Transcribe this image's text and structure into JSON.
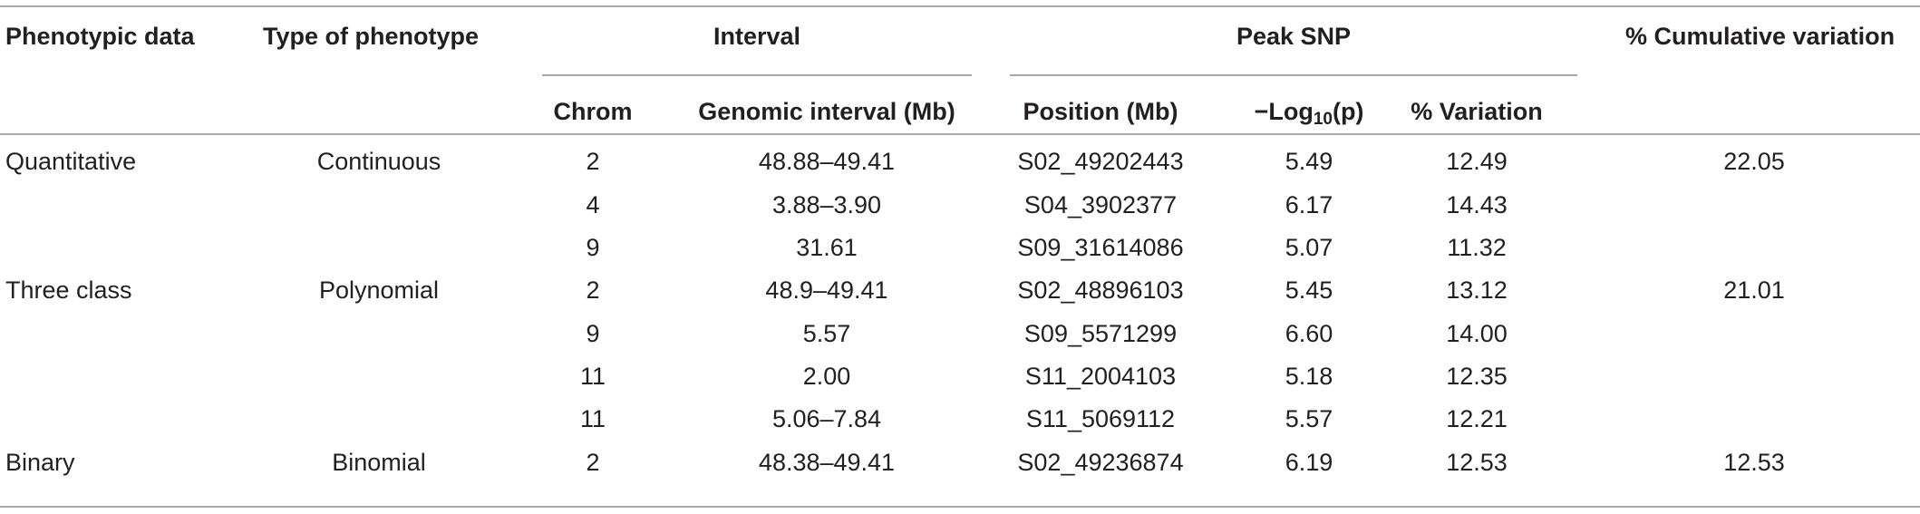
{
  "header": {
    "phenotypic_data": "Phenotypic data",
    "type_of_phenotype": "Type of phenotype",
    "interval": "Interval",
    "peak_snp": "Peak SNP",
    "cumulative_variation": "% Cumulative variation",
    "chrom": "Chrom",
    "genomic_interval": "Genomic interval (Mb)",
    "position": "Position (Mb)",
    "log_prefix": "−Log",
    "log_sub": "10",
    "log_suffix": "(p)",
    "variation": "% Variation"
  },
  "rows": [
    {
      "phenotypic_data": "Quantitative",
      "type": "Continuous",
      "chrom": "2",
      "interval": "48.88–49.41",
      "position": "S02_49202443",
      "log_p": "5.49",
      "variation": "12.49",
      "cumulative": "22.05"
    },
    {
      "phenotypic_data": "",
      "type": "",
      "chrom": "4",
      "interval": "3.88–3.90",
      "position": "S04_3902377",
      "log_p": "6.17",
      "variation": "14.43",
      "cumulative": ""
    },
    {
      "phenotypic_data": "",
      "type": "",
      "chrom": "9",
      "interval": "31.61",
      "position": "S09_31614086",
      "log_p": "5.07",
      "variation": "11.32",
      "cumulative": ""
    },
    {
      "phenotypic_data": "Three class",
      "type": "Polynomial",
      "chrom": "2",
      "interval": "48.9–49.41",
      "position": "S02_48896103",
      "log_p": "5.45",
      "variation": "13.12",
      "cumulative": "21.01"
    },
    {
      "phenotypic_data": "",
      "type": "",
      "chrom": "9",
      "interval": "5.57",
      "position": "S09_5571299",
      "log_p": "6.60",
      "variation": "14.00",
      "cumulative": ""
    },
    {
      "phenotypic_data": "",
      "type": "",
      "chrom": "11",
      "interval": "2.00",
      "position": "S11_2004103",
      "log_p": "5.18",
      "variation": "12.35",
      "cumulative": ""
    },
    {
      "phenotypic_data": "",
      "type": "",
      "chrom": "11",
      "interval": "5.06–7.84",
      "position": "S11_5069112",
      "log_p": "5.57",
      "variation": "12.21",
      "cumulative": ""
    },
    {
      "phenotypic_data": "Binary",
      "type": "Binomial",
      "chrom": "2",
      "interval": "48.38–49.41",
      "position": "S02_49236874",
      "log_p": "6.19",
      "variation": "12.53",
      "cumulative": "12.53"
    }
  ]
}
